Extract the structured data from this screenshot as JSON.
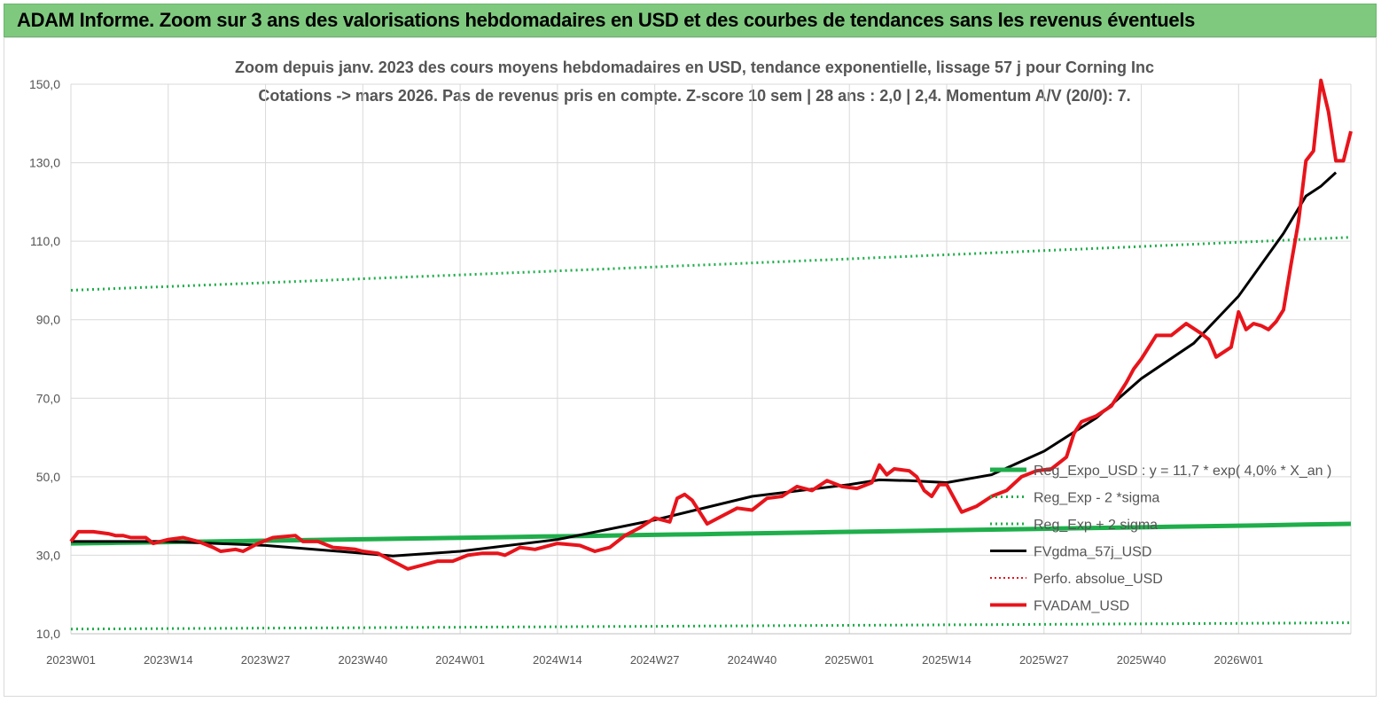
{
  "banner": {
    "title": "ADAM Informe. Zoom sur 3 ans des valorisations hebdomadaires en USD et des courbes de tendances sans les revenus éventuels"
  },
  "chart_data": {
    "type": "line",
    "title_line1": "Zoom depuis janv. 2023 des cours moyens hebdomadaires en USD, tendance exponentielle, lissage 57 j pour Corning Inc",
    "title_line2": "Cotations -> mars 2026. Pas de revenus pris en compte. Z-score 10 sem | 28 ans : 2,0 | 2,4. Momentum A/V (20/0): 7.",
    "ylim": [
      10,
      150
    ],
    "y_ticks": [
      "10,0",
      "30,0",
      "50,0",
      "70,0",
      "90,0",
      "110,0",
      "130,0",
      "150,0"
    ],
    "y_tick_values": [
      10,
      30,
      50,
      70,
      90,
      110,
      130,
      150
    ],
    "x_ticks": [
      "2023W01",
      "2023W14",
      "2023W27",
      "2023W40",
      "2024W01",
      "2024W14",
      "2024W27",
      "2024W40",
      "2025W01",
      "2025W14",
      "2025W27",
      "2025W40",
      "2026W01"
    ],
    "x_tick_index": [
      0,
      13,
      26,
      39,
      52,
      65,
      78,
      91,
      104,
      117,
      130,
      143,
      156
    ],
    "n_weeks": 169,
    "grid": true,
    "legend_position": "right",
    "colors": {
      "green": "#1fae4b",
      "black": "#000000",
      "red": "#e8141b"
    },
    "series": [
      {
        "name": "Reg_Expo_USD : y = 11,7 * exp( 4,0% *  X_an )",
        "style": "green-solid",
        "values": [
          33.0,
          35.3,
          38.0
        ]
      },
      {
        "name": "Reg_Exp - 2 *sigma",
        "style": "green-dotted",
        "values": [
          11.2,
          12.0,
          12.8
        ]
      },
      {
        "name": "Reg_Exp + 2 sigma",
        "style": "green-dotted",
        "values": [
          97.5,
          104.0,
          111.0
        ]
      },
      {
        "name": "FVgdma_57j_USD",
        "style": "black-solid",
        "points": [
          [
            0,
            33.5
          ],
          [
            13,
            33.5
          ],
          [
            26,
            32.5
          ],
          [
            39,
            30.5
          ],
          [
            43,
            29.8
          ],
          [
            52,
            31.0
          ],
          [
            65,
            34.0
          ],
          [
            78,
            39.0
          ],
          [
            91,
            45.0
          ],
          [
            104,
            48.0
          ],
          [
            108,
            49.2
          ],
          [
            112,
            49.0
          ],
          [
            117,
            48.5
          ],
          [
            123,
            50.5
          ],
          [
            130,
            56.5
          ],
          [
            137,
            65.0
          ],
          [
            143,
            75.0
          ],
          [
            150,
            84.0
          ],
          [
            156,
            96.0
          ],
          [
            162,
            112.0
          ],
          [
            165,
            121.5
          ],
          [
            167,
            124.0
          ],
          [
            169,
            127.5
          ]
        ]
      },
      {
        "name": "Perfo. absolue_USD",
        "style": "red-dotted",
        "points": []
      },
      {
        "name": "FVADAM_USD",
        "style": "red-solid",
        "points": [
          [
            0,
            33.5
          ],
          [
            1,
            36.0
          ],
          [
            3,
            36.0
          ],
          [
            5,
            35.5
          ],
          [
            6,
            35.0
          ],
          [
            7,
            35.0
          ],
          [
            8,
            34.5
          ],
          [
            10,
            34.5
          ],
          [
            11,
            33.0
          ],
          [
            13,
            34.0
          ],
          [
            15,
            34.5
          ],
          [
            17,
            33.5
          ],
          [
            19,
            32.0
          ],
          [
            20,
            31.0
          ],
          [
            22,
            31.5
          ],
          [
            23,
            31.0
          ],
          [
            25,
            33.0
          ],
          [
            27,
            34.5
          ],
          [
            30,
            35.0
          ],
          [
            31,
            33.5
          ],
          [
            33,
            33.5
          ],
          [
            35,
            32.0
          ],
          [
            38,
            31.5
          ],
          [
            39,
            31.0
          ],
          [
            41,
            30.5
          ],
          [
            43,
            28.5
          ],
          [
            45,
            26.5
          ],
          [
            47,
            27.5
          ],
          [
            49,
            28.5
          ],
          [
            51,
            28.5
          ],
          [
            53,
            30.0
          ],
          [
            55,
            30.5
          ],
          [
            57,
            30.5
          ],
          [
            58,
            30.0
          ],
          [
            60,
            32.0
          ],
          [
            62,
            31.5
          ],
          [
            65,
            33.0
          ],
          [
            68,
            32.5
          ],
          [
            70,
            31.0
          ],
          [
            72,
            32.0
          ],
          [
            74,
            35.0
          ],
          [
            76,
            37.0
          ],
          [
            78,
            39.5
          ],
          [
            80,
            38.5
          ],
          [
            81,
            44.5
          ],
          [
            82,
            45.5
          ],
          [
            83,
            44.0
          ],
          [
            85,
            38.0
          ],
          [
            87,
            40.0
          ],
          [
            89,
            42.0
          ],
          [
            91,
            41.5
          ],
          [
            93,
            44.5
          ],
          [
            95,
            45.0
          ],
          [
            97,
            47.5
          ],
          [
            99,
            46.5
          ],
          [
            101,
            49.0
          ],
          [
            103,
            47.5
          ],
          [
            105,
            47.0
          ],
          [
            107,
            48.5
          ],
          [
            108,
            53.0
          ],
          [
            109,
            50.5
          ],
          [
            110,
            52.0
          ],
          [
            112,
            51.5
          ],
          [
            113,
            50.0
          ],
          [
            114,
            46.5
          ],
          [
            115,
            45.0
          ],
          [
            116,
            48.0
          ],
          [
            117,
            48.0
          ],
          [
            118,
            44.5
          ],
          [
            119,
            41.0
          ],
          [
            121,
            42.5
          ],
          [
            123,
            45.0
          ],
          [
            125,
            46.5
          ],
          [
            127,
            50.0
          ],
          [
            129,
            51.5
          ],
          [
            131,
            52.0
          ],
          [
            133,
            55.0
          ],
          [
            134,
            61.0
          ],
          [
            135,
            64.0
          ],
          [
            137,
            65.5
          ],
          [
            139,
            68.0
          ],
          [
            141,
            74.0
          ],
          [
            142,
            77.5
          ],
          [
            143,
            80.0
          ],
          [
            145,
            86.0
          ],
          [
            147,
            86.0
          ],
          [
            149,
            89.0
          ],
          [
            151,
            86.5
          ],
          [
            152,
            85.0
          ],
          [
            153,
            80.5
          ],
          [
            155,
            83.0
          ],
          [
            156,
            92.0
          ],
          [
            157,
            87.5
          ],
          [
            158,
            89.0
          ],
          [
            159,
            88.5
          ],
          [
            160,
            87.5
          ],
          [
            161,
            89.5
          ],
          [
            162,
            92.5
          ],
          [
            163,
            104.0
          ],
          [
            164,
            115.0
          ],
          [
            165,
            130.5
          ],
          [
            166,
            133.0
          ],
          [
            167,
            151.0
          ],
          [
            168,
            143.0
          ],
          [
            169,
            130.5
          ],
          [
            170,
            130.5
          ],
          [
            171,
            138.0
          ]
        ]
      }
    ]
  }
}
